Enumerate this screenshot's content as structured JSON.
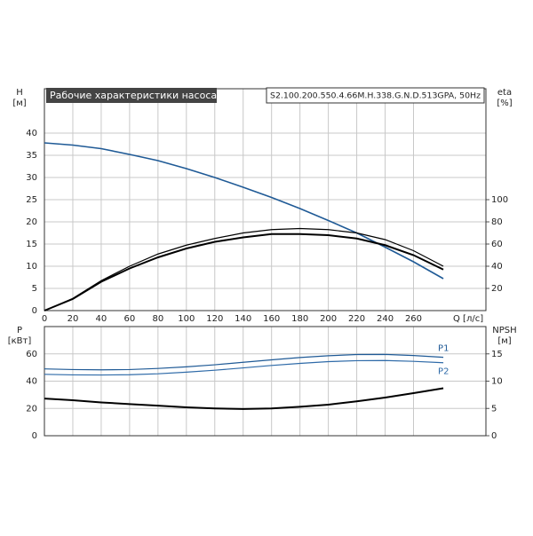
{
  "chart_data": [
    {
      "type": "line",
      "title": "Рабочие характеристики насоса",
      "subtitle": "S2.100.200.550.4.66M.H.338.G.N.D.513GPA, 50Hz",
      "ylabel": [
        "H",
        "[м]"
      ],
      "y2label": [
        "eta",
        "[%]"
      ],
      "xlabel": "Q [л/с]",
      "x": [
        0,
        20,
        40,
        60,
        80,
        100,
        120,
        140,
        160,
        180,
        200,
        220,
        240,
        260,
        281
      ],
      "xlim": [
        0,
        311
      ],
      "xticks": [
        0,
        20,
        40,
        60,
        80,
        100,
        120,
        140,
        160,
        180,
        200,
        220,
        240,
        260
      ],
      "ylim": [
        0,
        50
      ],
      "yticks": [
        0,
        5,
        10,
        15,
        20,
        25,
        30,
        35,
        40
      ],
      "y2lim": [
        0,
        200
      ],
      "y2ticks": [
        20,
        40,
        60,
        80,
        100
      ],
      "grid": true,
      "series": [
        {
          "color": "#1f5a96",
          "values": [
            37.8,
            37.3,
            36.5,
            35.2,
            33.8,
            32,
            30,
            27.8,
            25.5,
            23,
            20.3,
            17.5,
            14.3,
            11,
            7.2
          ]
        },
        {
          "color": "#000000",
          "axis": "y2",
          "values": [
            0,
            11,
            27,
            40,
            51,
            59,
            65,
            70,
            73,
            74,
            73,
            70,
            64,
            54,
            40
          ]
        },
        {
          "color": "#000000",
          "axis": "y2",
          "values": [
            0,
            10.5,
            26,
            38,
            48,
            56,
            62,
            66,
            69,
            69,
            68,
            65,
            59,
            50,
            37
          ]
        }
      ]
    },
    {
      "type": "line",
      "ylabel": [
        "P",
        "[кВт]"
      ],
      "y2label": [
        "NPSH",
        "[м]"
      ],
      "x": [
        0,
        20,
        40,
        60,
        80,
        100,
        120,
        140,
        160,
        180,
        200,
        220,
        240,
        260,
        281
      ],
      "xlim": [
        0,
        311
      ],
      "xticks": [
        0,
        20,
        40,
        60,
        80,
        100,
        120,
        140,
        160,
        180,
        200,
        220,
        240,
        260
      ],
      "ylim": [
        0,
        80
      ],
      "yticks": [
        0,
        20,
        40,
        60
      ],
      "y2lim": [
        0,
        20
      ],
      "y2ticks": [
        0,
        5,
        10,
        15
      ],
      "grid": true,
      "series": [
        {
          "name": "P1",
          "color": "#1f5a96",
          "values": [
            49,
            48.5,
            48.3,
            48.5,
            49.3,
            50.5,
            52,
            53.8,
            55.6,
            57.3,
            58.6,
            59.5,
            59.6,
            58.8,
            57.5
          ]
        },
        {
          "name": "P2",
          "color": "#2e6aa8",
          "values": [
            45,
            44.6,
            44.5,
            44.7,
            45.4,
            46.6,
            48,
            49.7,
            51.5,
            53,
            54.3,
            55,
            55.1,
            54.5,
            53.5
          ]
        },
        {
          "color": "#000000",
          "axis": "y2",
          "values": [
            6.8,
            6.5,
            6.1,
            5.8,
            5.5,
            5.2,
            5.0,
            4.9,
            5.0,
            5.3,
            5.7,
            6.3,
            7.0,
            7.8,
            8.7
          ]
        }
      ]
    }
  ]
}
